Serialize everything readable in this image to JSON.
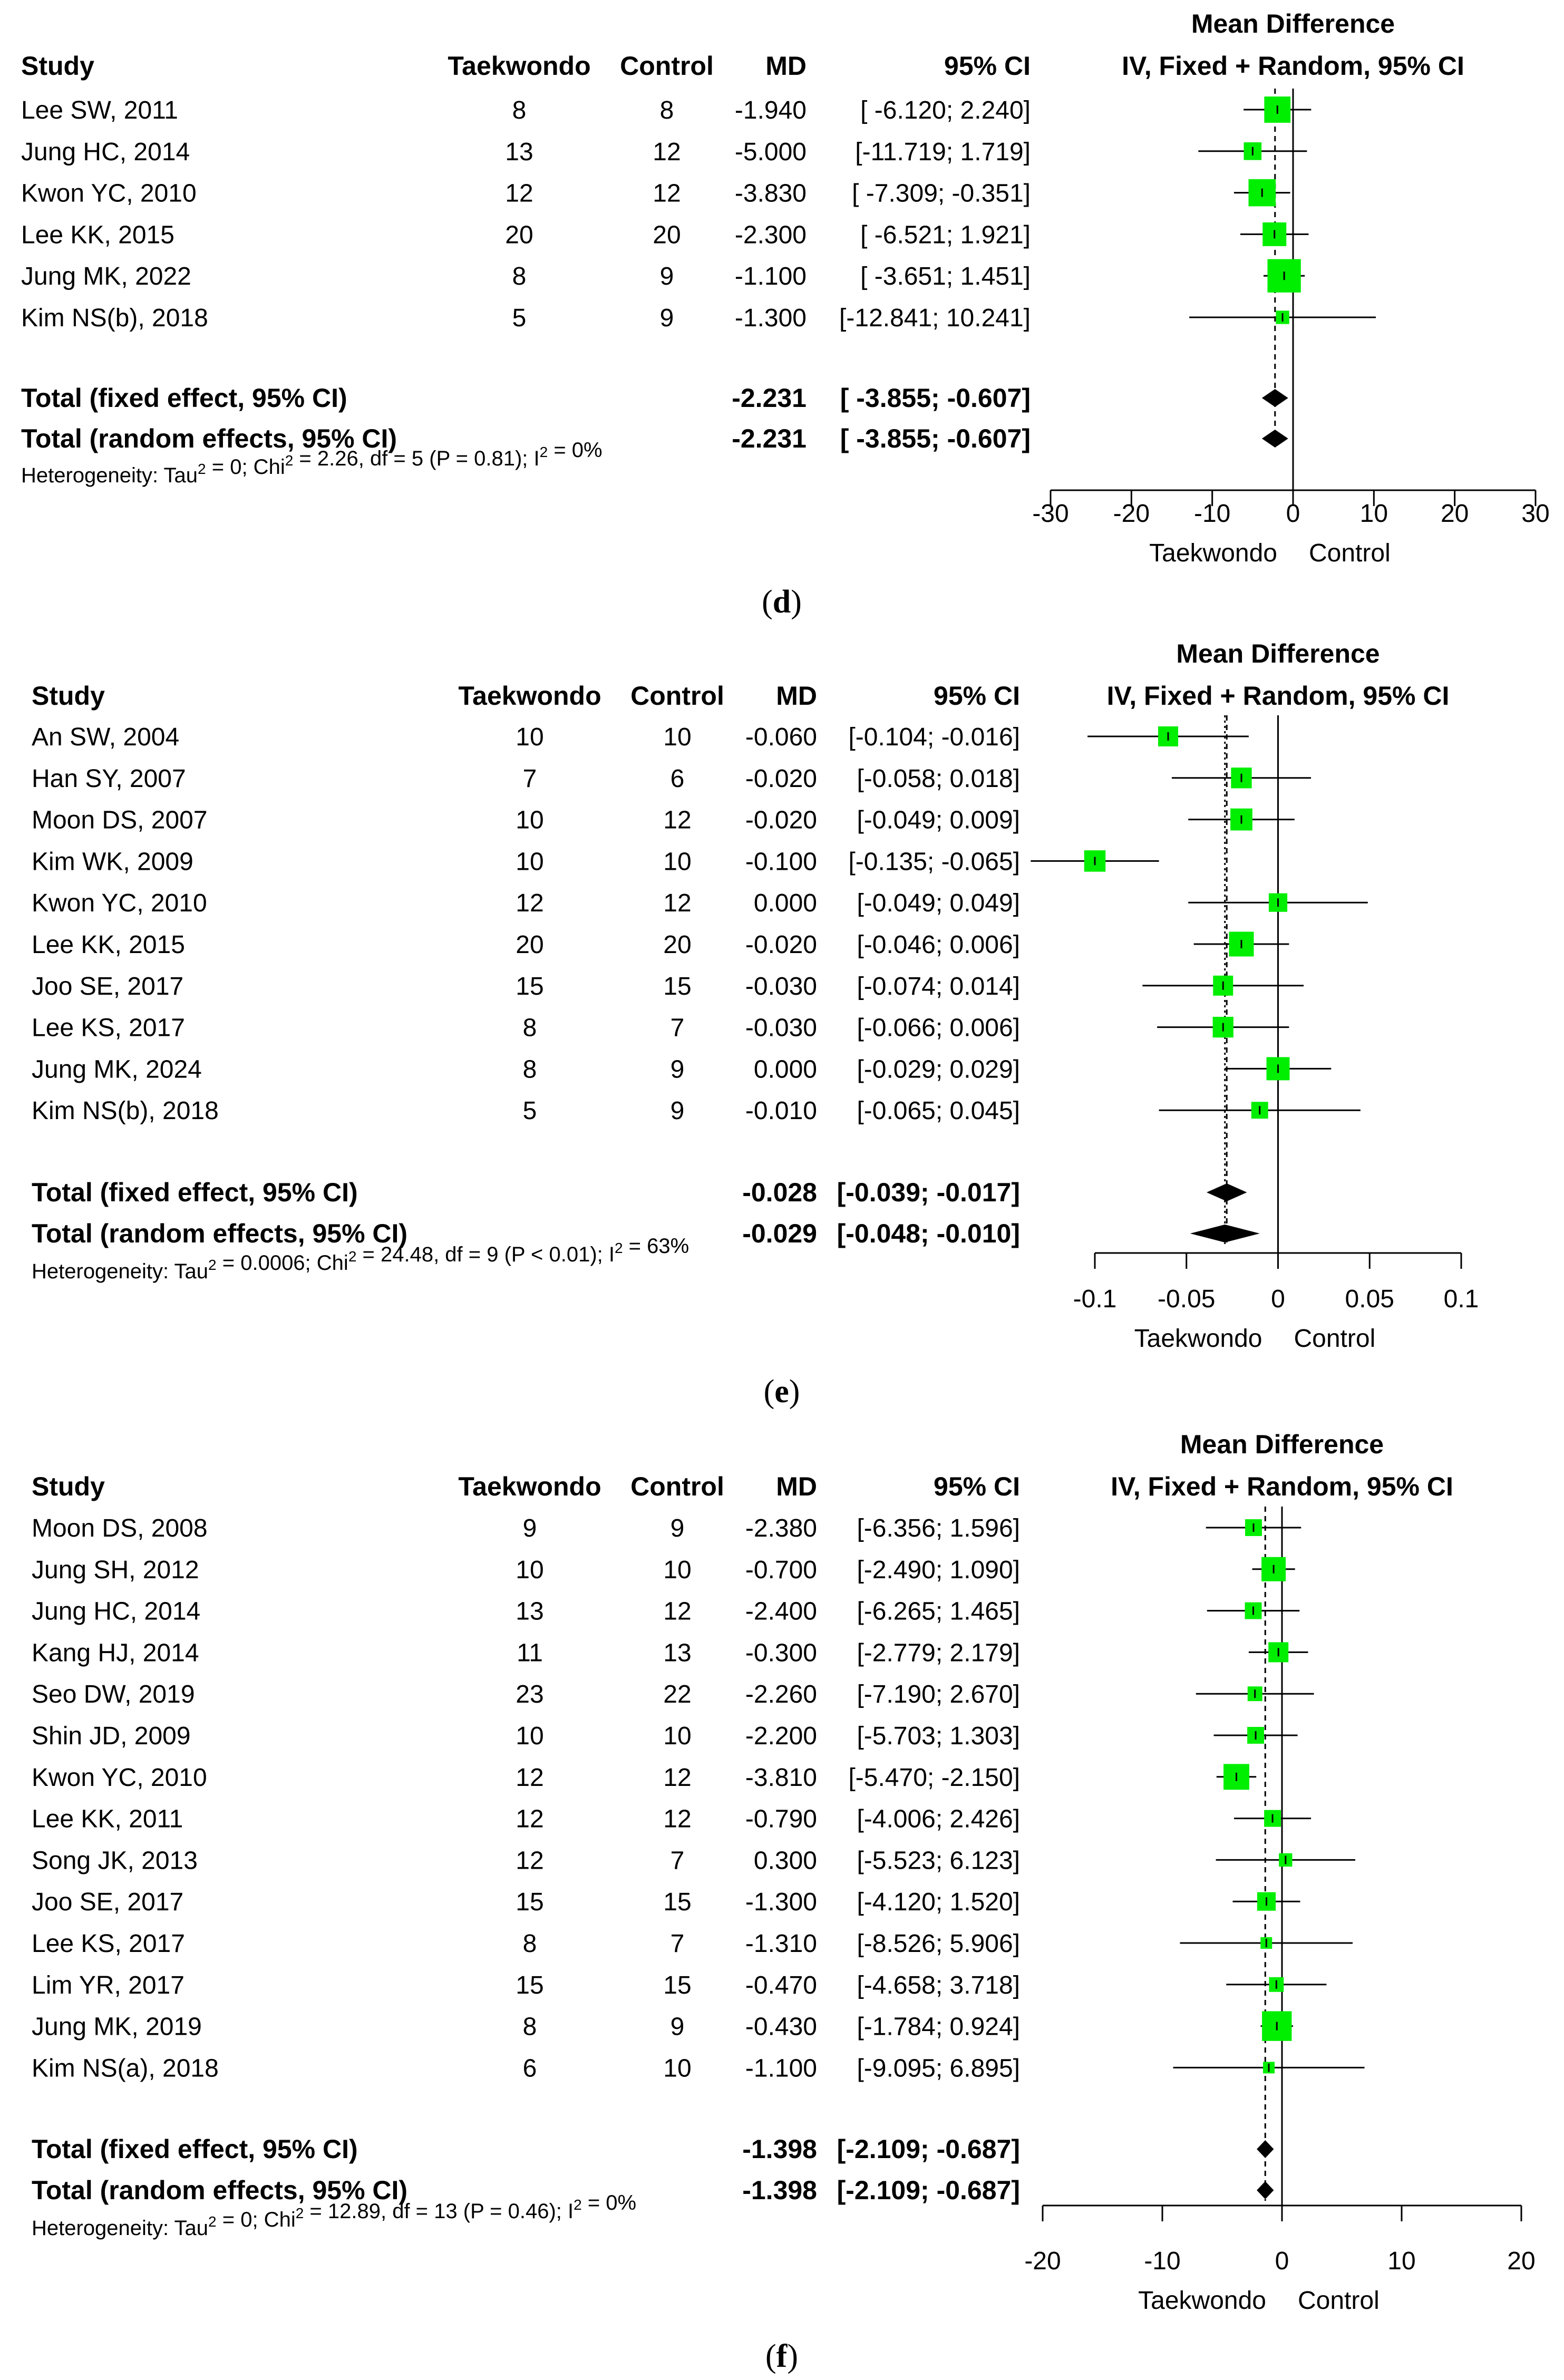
{
  "headers": {
    "chart_title_1": "Mean Difference",
    "chart_title_2": "IV, Fixed + Random, 95% CI",
    "study": "Study",
    "experimental": "Taekwondo",
    "control": "Control",
    "md": "MD",
    "ci": "95% CI"
  },
  "colors": {
    "box": "#00ee00",
    "diamond": "#000000",
    "line": "#000000"
  },
  "chart_data": [
    {
      "type": "forest",
      "caption_open": "(",
      "caption_letter": "d",
      "caption_close": ")",
      "xlim": [
        -30,
        30
      ],
      "ticks": [
        "-30",
        "-20",
        "-10",
        "0",
        "10",
        "20",
        "30"
      ],
      "xlabel_left": "Taekwondo",
      "xlabel_right": "Control",
      "studies": [
        {
          "name": "Lee SW, 2011",
          "n_exp": "8",
          "n_ctl": "8",
          "md": "-1.940",
          "ci_text": "[ -6.120;  2.240]",
          "lo": -6.12,
          "hi": 2.24,
          "est": -1.94,
          "weight": 0.2
        },
        {
          "name": "Jung HC, 2014",
          "n_exp": "13",
          "n_ctl": "12",
          "md": "-5.000",
          "ci_text": "[-11.719;  1.719]",
          "lo": -11.719,
          "hi": 1.719,
          "est": -5.0,
          "weight": 0.06
        },
        {
          "name": "Kwon YC, 2010",
          "n_exp": "12",
          "n_ctl": "12",
          "md": "-3.830",
          "ci_text": "[ -7.309; -0.351]",
          "lo": -7.309,
          "hi": -0.351,
          "est": -3.83,
          "weight": 0.22
        },
        {
          "name": "Lee KK, 2015",
          "n_exp": "20",
          "n_ctl": "20",
          "md": "-2.300",
          "ci_text": "[ -6.521;  1.921]",
          "lo": -6.521,
          "hi": 1.921,
          "est": -2.3,
          "weight": 0.15
        },
        {
          "name": "Jung MK, 2022",
          "n_exp": "8",
          "n_ctl": "9",
          "md": "-1.100",
          "ci_text": "[ -3.651;  1.451]",
          "lo": -3.651,
          "hi": 1.451,
          "est": -1.1,
          "weight": 0.38
        },
        {
          "name": "Kim NS(b), 2018",
          "n_exp": "5",
          "n_ctl": "9",
          "md": "-1.300",
          "ci_text": "[-12.841; 10.241]",
          "lo": -12.841,
          "hi": 10.241,
          "est": -1.3,
          "weight": 0.02
        }
      ],
      "fixed": {
        "label": "Total (fixed effect, 95% CI)",
        "md": "-2.231",
        "ci_text": "[ -3.855; -0.607]",
        "est": -2.231,
        "lo": -3.855,
        "hi": -0.607
      },
      "random": {
        "label": "Total (random effects, 95% CI)",
        "md": "-2.231",
        "ci_text": "[ -3.855; -0.607]",
        "est": -2.231,
        "lo": -3.855,
        "hi": -0.607
      },
      "het_prefix": "Heterogeneity: Tau",
      "het_mid1": " = 0; Chi",
      "het_mid2": " = 2.26, df = 5 (P = 0.81); I",
      "het_suffix": " = 0%"
    },
    {
      "type": "forest",
      "caption_open": "(",
      "caption_letter": "e",
      "caption_close": ")",
      "xlim": [
        -0.1,
        0.1
      ],
      "ticks": [
        "-0.1",
        "-0.05",
        "0",
        "0.05",
        "0.1"
      ],
      "xlabel_left": "Taekwondo",
      "xlabel_right": "Control",
      "studies": [
        {
          "name": "An SW, 2004",
          "n_exp": "10",
          "n_ctl": "10",
          "md": "-0.060",
          "ci_text": "[-0.104; -0.016]",
          "lo": -0.104,
          "hi": -0.016,
          "est": -0.06,
          "weight": 0.09
        },
        {
          "name": "Han SY, 2007",
          "n_exp": "7",
          "n_ctl": "6",
          "md": "-0.020",
          "ci_text": "[-0.058;  0.018]",
          "lo": -0.058,
          "hi": 0.018,
          "est": -0.02,
          "weight": 0.1
        },
        {
          "name": "Moon DS, 2007",
          "n_exp": "10",
          "n_ctl": "12",
          "md": "-0.020",
          "ci_text": "[-0.049;  0.009]",
          "lo": -0.049,
          "hi": 0.009,
          "est": -0.02,
          "weight": 0.12
        },
        {
          "name": "Kim WK, 2009",
          "n_exp": "10",
          "n_ctl": "10",
          "md": "-0.100",
          "ci_text": "[-0.135; -0.065]",
          "lo": -0.135,
          "hi": -0.065,
          "est": -0.1,
          "weight": 0.11
        },
        {
          "name": "Kwon YC, 2010",
          "n_exp": "12",
          "n_ctl": "12",
          "md": "0.000",
          "ci_text": "[-0.049;  0.049]",
          "lo": -0.049,
          "hi": 0.049,
          "est": 0.0,
          "weight": 0.07
        },
        {
          "name": "Lee KK, 2015",
          "n_exp": "20",
          "n_ctl": "20",
          "md": "-0.020",
          "ci_text": "[-0.046;  0.006]",
          "lo": -0.046,
          "hi": 0.006,
          "est": -0.02,
          "weight": 0.17
        },
        {
          "name": "Joo SE, 2017",
          "n_exp": "15",
          "n_ctl": "15",
          "md": "-0.030",
          "ci_text": "[-0.074;  0.014]",
          "lo": -0.074,
          "hi": 0.014,
          "est": -0.03,
          "weight": 0.09
        },
        {
          "name": "Lee KS, 2017",
          "n_exp": "8",
          "n_ctl": "7",
          "md": "-0.030",
          "ci_text": "[-0.066;  0.006]",
          "lo": -0.066,
          "hi": 0.006,
          "est": -0.03,
          "weight": 0.1
        },
        {
          "name": "Jung MK, 2024",
          "n_exp": "8",
          "n_ctl": "9",
          "md": "0.000",
          "ci_text": "[-0.029;  0.029]",
          "lo": -0.029,
          "hi": 0.029,
          "est": 0.0,
          "weight": 0.14
        },
        {
          "name": "Kim NS(b), 2018",
          "n_exp": "5",
          "n_ctl": "9",
          "md": "-0.010",
          "ci_text": "[-0.065;  0.045]",
          "lo": -0.065,
          "hi": 0.045,
          "est": -0.01,
          "weight": 0.05
        }
      ],
      "fixed": {
        "label": "Total (fixed effect, 95% CI)",
        "md": "-0.028",
        "ci_text": "[-0.039; -0.017]",
        "est": -0.028,
        "lo": -0.039,
        "hi": -0.017
      },
      "random": {
        "label": "Total (random effects, 95% CI)",
        "md": "-0.029",
        "ci_text": "[-0.048; -0.010]",
        "est": -0.029,
        "lo": -0.048,
        "hi": -0.01
      },
      "het_prefix": "Heterogeneity: Tau",
      "het_mid1": " = 0.0006; Chi",
      "het_mid2": " = 24.48, df = 9 (P < 0.01); I",
      "het_suffix": " = 63%"
    },
    {
      "type": "forest",
      "caption_open": "(",
      "caption_letter": "f",
      "caption_close": ")",
      "xlim": [
        -20,
        20
      ],
      "ticks": [
        "-20",
        "-10",
        "0",
        "10",
        "20"
      ],
      "xlabel_left": "Taekwondo",
      "xlabel_right": "Control",
      "studies": [
        {
          "name": "Moon DS, 2008",
          "n_exp": "9",
          "n_ctl": "9",
          "md": "-2.380",
          "ci_text": "[-6.356;  1.596]",
          "lo": -6.356,
          "hi": 1.596,
          "est": -2.38,
          "weight": 0.05
        },
        {
          "name": "Jung SH, 2012",
          "n_exp": "10",
          "n_ctl": "10",
          "md": "-0.700",
          "ci_text": "[-2.490;  1.090]",
          "lo": -2.49,
          "hi": 1.09,
          "est": -0.7,
          "weight": 0.16
        },
        {
          "name": "Jung HC, 2014",
          "n_exp": "13",
          "n_ctl": "12",
          "md": "-2.400",
          "ci_text": "[-6.265;  1.465]",
          "lo": -6.265,
          "hi": 1.465,
          "est": -2.4,
          "weight": 0.05
        },
        {
          "name": "Kang HJ, 2014",
          "n_exp": "11",
          "n_ctl": "13",
          "md": "-0.300",
          "ci_text": "[-2.779;  2.179]",
          "lo": -2.779,
          "hi": 2.179,
          "est": -0.3,
          "weight": 0.09
        },
        {
          "name": "Seo DW, 2019",
          "n_exp": "23",
          "n_ctl": "22",
          "md": "-2.260",
          "ci_text": "[-7.190;  2.670]",
          "lo": -7.19,
          "hi": 2.67,
          "est": -2.26,
          "weight": 0.03
        },
        {
          "name": "Shin JD, 2009",
          "n_exp": "10",
          "n_ctl": "10",
          "md": "-2.200",
          "ci_text": "[-5.703;  1.303]",
          "lo": -5.703,
          "hi": 1.303,
          "est": -2.2,
          "weight": 0.05
        },
        {
          "name": "Kwon YC, 2010",
          "n_exp": "12",
          "n_ctl": "12",
          "md": "-3.810",
          "ci_text": "[-5.470; -2.150]",
          "lo": -5.47,
          "hi": -2.15,
          "est": -3.81,
          "weight": 0.19
        },
        {
          "name": "Lee KK, 2011",
          "n_exp": "12",
          "n_ctl": "12",
          "md": "-0.790",
          "ci_text": "[-4.006;  2.426]",
          "lo": -4.006,
          "hi": 2.426,
          "est": -0.79,
          "weight": 0.05
        },
        {
          "name": "Song JK, 2013",
          "n_exp": "12",
          "n_ctl": "7",
          "md": "0.300",
          "ci_text": "[-5.523;  6.123]",
          "lo": -5.523,
          "hi": 6.123,
          "est": 0.3,
          "weight": 0.02
        },
        {
          "name": "Joo SE, 2017",
          "n_exp": "15",
          "n_ctl": "15",
          "md": "-1.300",
          "ci_text": "[-4.120;  1.520]",
          "lo": -4.12,
          "hi": 1.52,
          "est": -1.3,
          "weight": 0.07
        },
        {
          "name": "Lee KS, 2017",
          "n_exp": "8",
          "n_ctl": "7",
          "md": "-1.310",
          "ci_text": "[-8.526;  5.906]",
          "lo": -8.526,
          "hi": 5.906,
          "est": -1.31,
          "weight": 0.01
        },
        {
          "name": "Lim YR, 2017",
          "n_exp": "15",
          "n_ctl": "15",
          "md": "-0.470",
          "ci_text": "[-4.658;  3.718]",
          "lo": -4.658,
          "hi": 3.718,
          "est": -0.47,
          "weight": 0.03
        },
        {
          "name": "Jung MK, 2019",
          "n_exp": "8",
          "n_ctl": "9",
          "md": "-0.430",
          "ci_text": "[-1.784;  0.924]",
          "lo": -1.784,
          "hi": 0.924,
          "est": -0.43,
          "weight": 0.28
        },
        {
          "name": "Kim NS(a), 2018",
          "n_exp": "6",
          "n_ctl": "10",
          "md": "-1.100",
          "ci_text": "[-9.095;  6.895]",
          "lo": -9.095,
          "hi": 6.895,
          "est": -1.1,
          "weight": 0.01
        }
      ],
      "fixed": {
        "label": "Total (fixed effect, 95% CI)",
        "md": "-1.398",
        "ci_text": "[-2.109; -0.687]",
        "est": -1.398,
        "lo": -2.109,
        "hi": -0.687
      },
      "random": {
        "label": "Total (random effects, 95% CI)",
        "md": "-1.398",
        "ci_text": "[-2.109; -0.687]",
        "est": -1.398,
        "lo": -2.109,
        "hi": -0.687
      },
      "het_prefix": "Heterogeneity: Tau",
      "het_mid1": " = 0; Chi",
      "het_mid2": " = 12.89, df = 13 (P = 0.46); I",
      "het_suffix": " = 0%"
    }
  ]
}
